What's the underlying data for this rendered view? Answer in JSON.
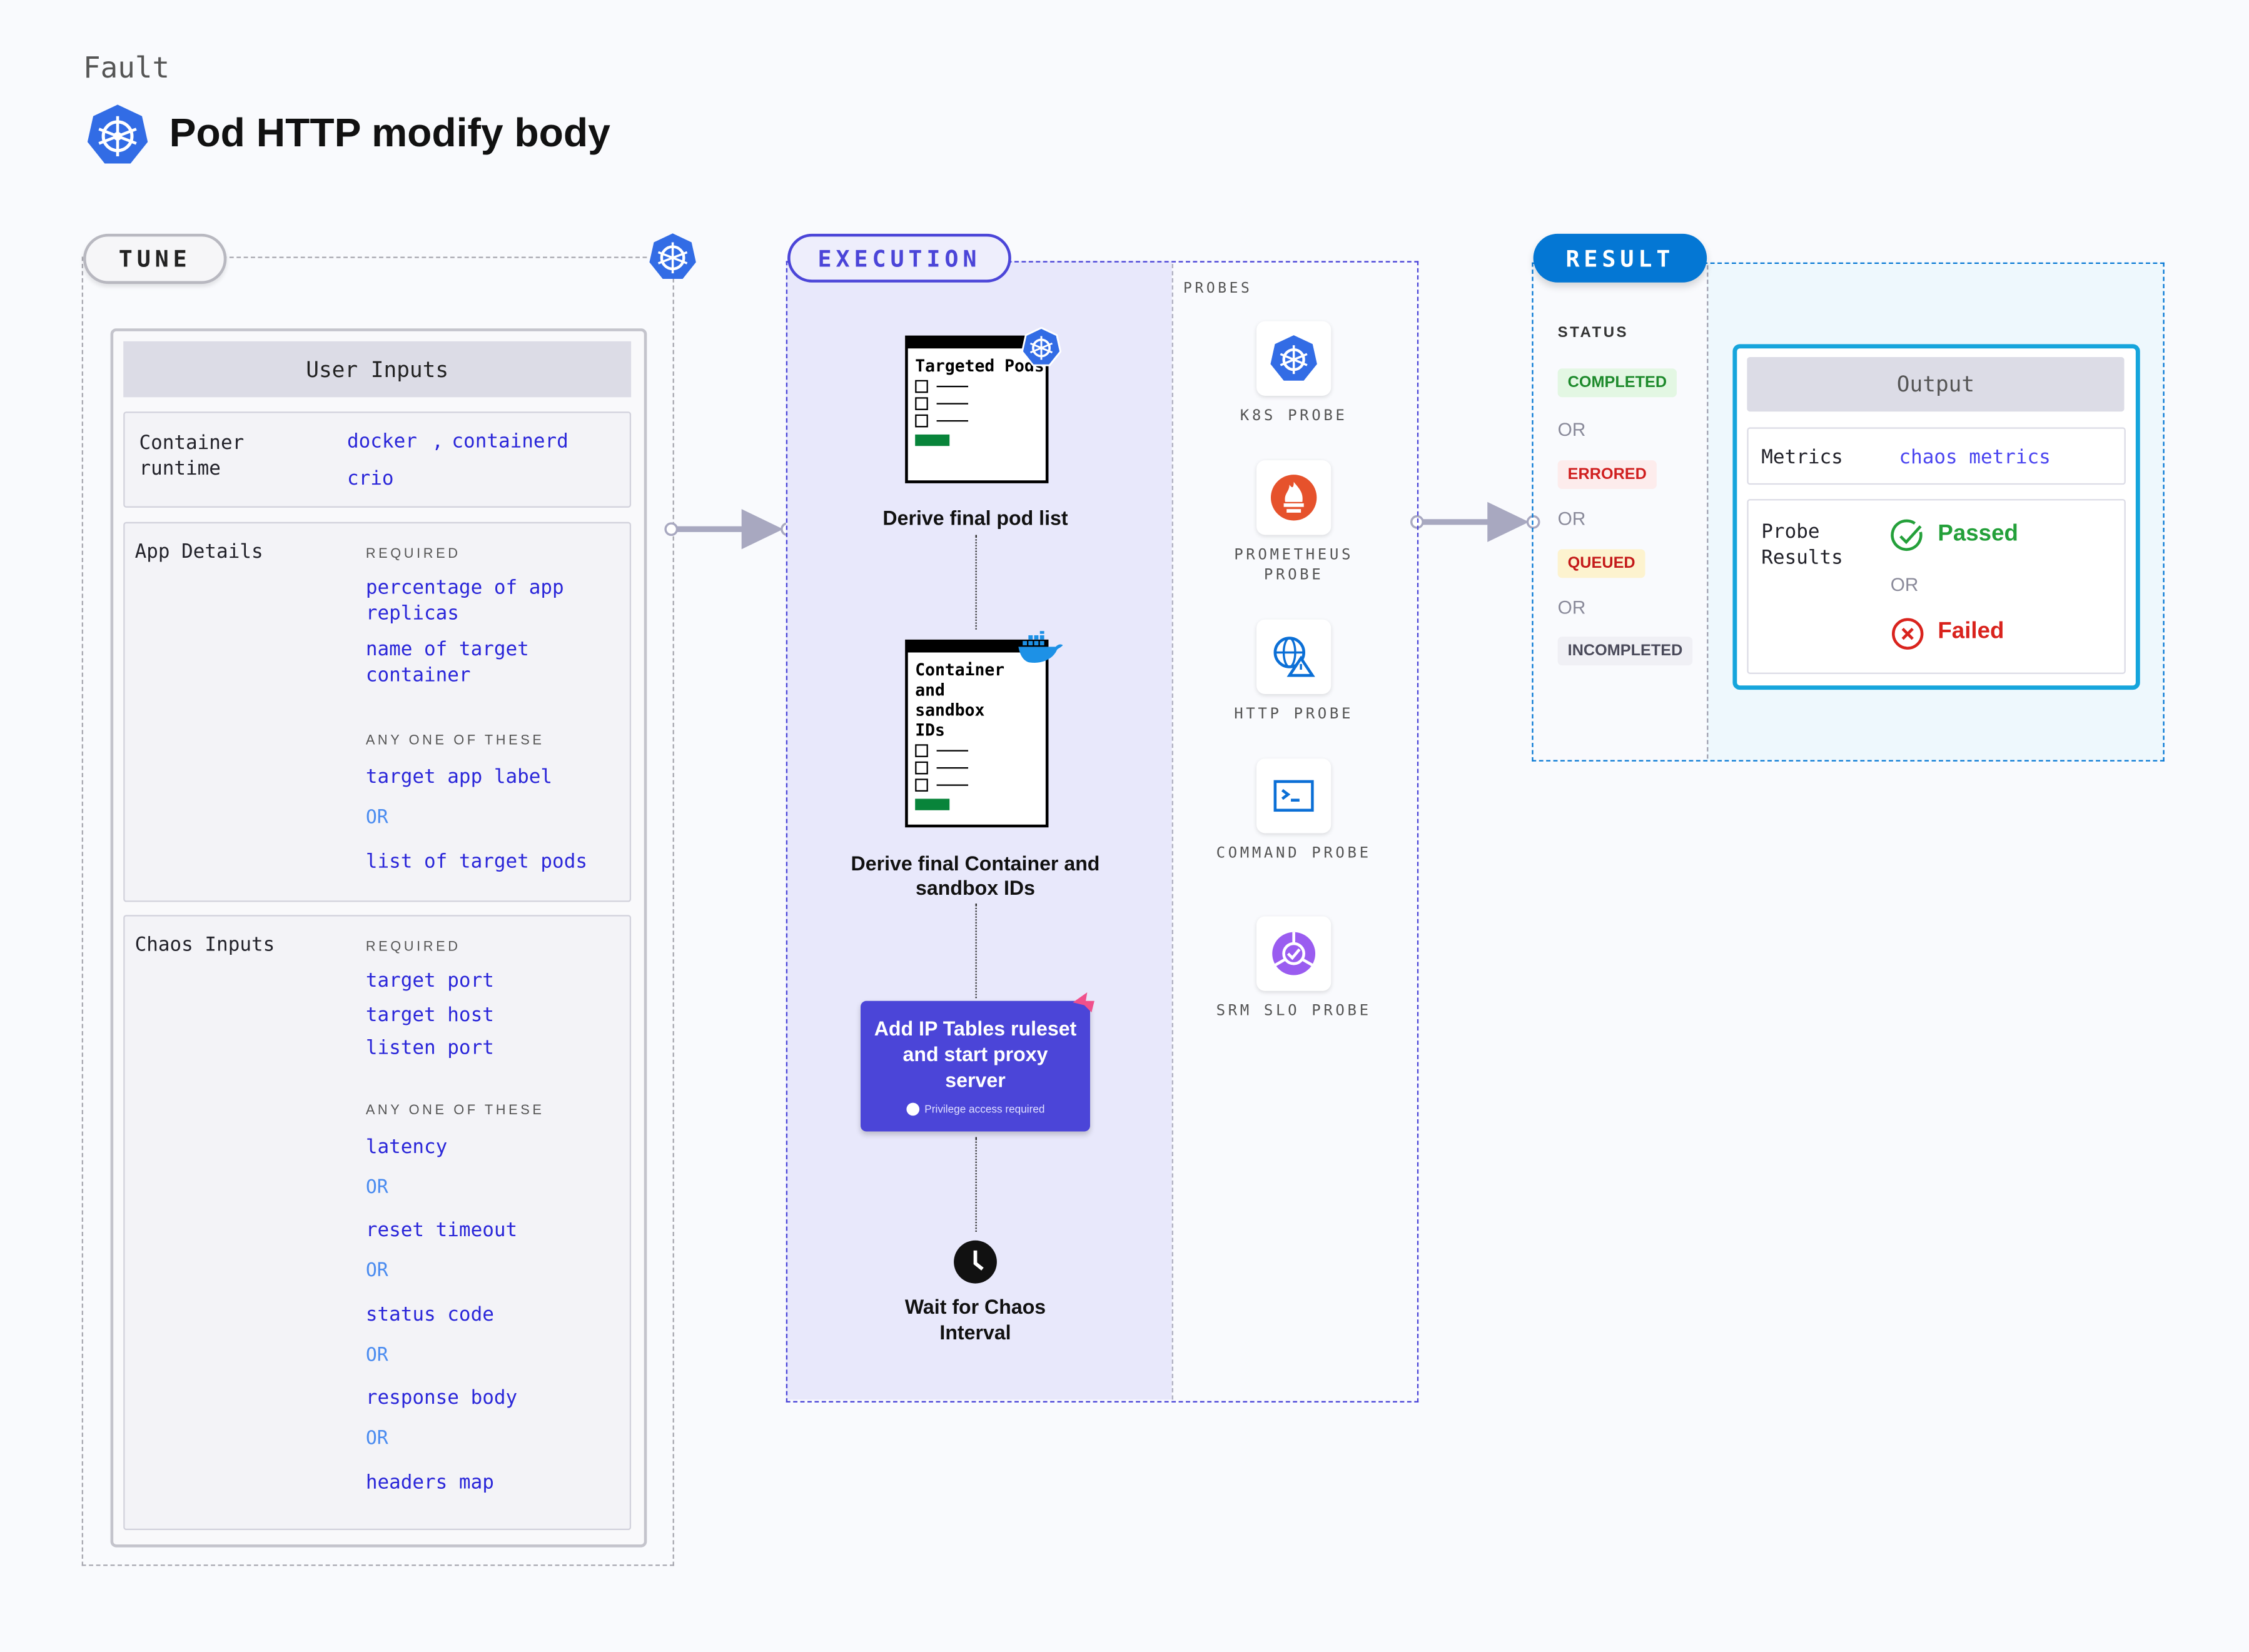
{
  "header": {
    "kicker": "Fault",
    "title": "Pod HTTP modify body",
    "icon": "kubernetes-icon"
  },
  "tune": {
    "label": "TUNE",
    "user_inputs_title": "User Inputs",
    "container_runtime": {
      "label": "Container runtime",
      "values": [
        "docker",
        "containerd",
        "crio"
      ],
      "separator": ","
    },
    "app_details": {
      "label": "App Details",
      "required_caption": "REQUIRED",
      "required": [
        "percentage of app replicas",
        "name of target container"
      ],
      "any_caption": "ANY ONE OF THESE",
      "any": [
        "target app label",
        "list of target pods"
      ],
      "or": "OR"
    },
    "chaos_inputs": {
      "label": "Chaos Inputs",
      "required_caption": "REQUIRED",
      "required": [
        "target port",
        "target host",
        "listen port"
      ],
      "any_caption": "ANY ONE OF THESE",
      "any": [
        "latency",
        "reset timeout",
        "status code",
        "response body",
        "headers map"
      ],
      "or": "OR"
    }
  },
  "execution": {
    "label": "EXECUTION",
    "steps": [
      {
        "doc_title": "Targeted Pods",
        "caption": "Derive final pod list",
        "badge_icon": "kubernetes-icon"
      },
      {
        "doc_title": "Container and sandbox IDs",
        "caption": "Derive final Container and sandbox IDs",
        "badge_icon": "docker-icon"
      },
      {
        "title": "Add IP Tables ruleset and start proxy server",
        "note": "Privilege access required",
        "badge_icon": "harness-icon"
      },
      {
        "caption": "Wait for Chaos Interval",
        "icon": "clock-icon"
      }
    ],
    "probes_label": "PROBES",
    "probes": [
      {
        "label": "K8S PROBE",
        "icon": "kubernetes-icon"
      },
      {
        "label": "PROMETHEUS PROBE",
        "icon": "prometheus-icon"
      },
      {
        "label": "HTTP PROBE",
        "icon": "globe-warning-icon"
      },
      {
        "label": "COMMAND PROBE",
        "icon": "terminal-icon"
      },
      {
        "label": "SRM SLO PROBE",
        "icon": "srm-icon"
      }
    ]
  },
  "result": {
    "label": "RESULT",
    "status_label": "STATUS",
    "statuses": [
      {
        "label": "COMPLETED",
        "color": "#1e8a2c",
        "bg": "#e3f7e3"
      },
      {
        "label": "ERRORED",
        "color": "#d01f1f",
        "bg": "#fdecec"
      },
      {
        "label": "QUEUED",
        "color": "#c41a1a",
        "bg": "#fdf3cf"
      },
      {
        "label": "INCOMPLETED",
        "color": "#4a4a5a",
        "bg": "#f0f0f5"
      }
    ],
    "or": "OR",
    "output": {
      "title": "Output",
      "metrics_label": "Metrics",
      "metrics_value": "chaos metrics",
      "probe_results_label": "Probe Results",
      "passed": "Passed",
      "failed": "Failed",
      "or": "OR"
    }
  },
  "colors": {
    "execution": "#4b45d8",
    "result": "#0477d4",
    "link": "#2a26d9",
    "output_border": "#16a5dc"
  }
}
